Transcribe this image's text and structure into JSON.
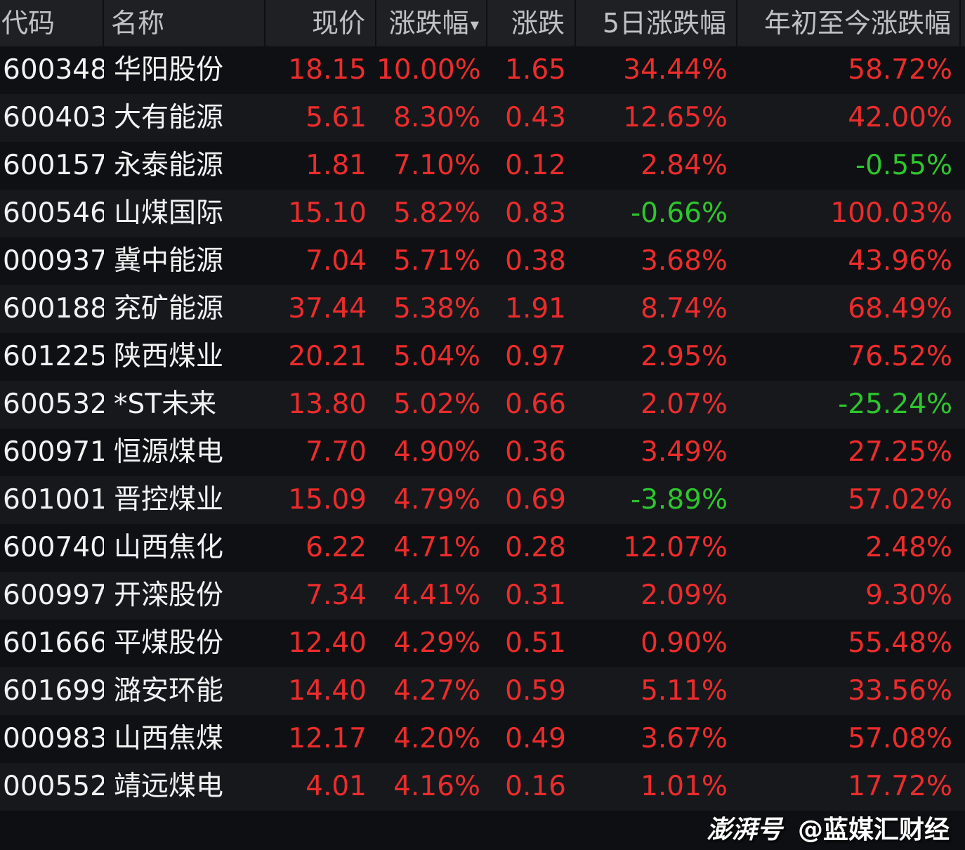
{
  "header": {
    "code": "代码",
    "name": "名称",
    "price": "现价",
    "pct": "涨跌幅",
    "sort_icon": "triangle-down",
    "change": "涨跌",
    "pct5d": "5日涨跌幅",
    "ytd": "年初至今涨跌幅"
  },
  "colors": {
    "up": "#ec2c2c",
    "down": "#2ec52e",
    "header_bg": "#1f2024"
  },
  "rows": [
    {
      "code": "600348",
      "name": "华阳股份",
      "price": "18.15",
      "pct": "10.00%",
      "change": "1.65",
      "pct5d": "34.44%",
      "ytd": "58.72%"
    },
    {
      "code": "600403",
      "name": "大有能源",
      "price": "5.61",
      "pct": "8.30%",
      "change": "0.43",
      "pct5d": "12.65%",
      "ytd": "42.00%"
    },
    {
      "code": "600157",
      "name": "永泰能源",
      "price": "1.81",
      "pct": "7.10%",
      "change": "0.12",
      "pct5d": "2.84%",
      "ytd": "-0.55%"
    },
    {
      "code": "600546",
      "name": "山煤国际",
      "price": "15.10",
      "pct": "5.82%",
      "change": "0.83",
      "pct5d": "-0.66%",
      "ytd": "100.03%"
    },
    {
      "code": "000937",
      "name": "冀中能源",
      "price": "7.04",
      "pct": "5.71%",
      "change": "0.38",
      "pct5d": "3.68%",
      "ytd": "43.96%"
    },
    {
      "code": "600188",
      "name": "兖矿能源",
      "price": "37.44",
      "pct": "5.38%",
      "change": "1.91",
      "pct5d": "8.74%",
      "ytd": "68.49%"
    },
    {
      "code": "601225",
      "name": "陕西煤业",
      "price": "20.21",
      "pct": "5.04%",
      "change": "0.97",
      "pct5d": "2.95%",
      "ytd": "76.52%"
    },
    {
      "code": "600532",
      "name": "*ST未来",
      "price": "13.80",
      "pct": "5.02%",
      "change": "0.66",
      "pct5d": "2.07%",
      "ytd": "-25.24%"
    },
    {
      "code": "600971",
      "name": "恒源煤电",
      "price": "7.70",
      "pct": "4.90%",
      "change": "0.36",
      "pct5d": "3.49%",
      "ytd": "27.25%"
    },
    {
      "code": "601001",
      "name": "晋控煤业",
      "price": "15.09",
      "pct": "4.79%",
      "change": "0.69",
      "pct5d": "-3.89%",
      "ytd": "57.02%"
    },
    {
      "code": "600740",
      "name": "山西焦化",
      "price": "6.22",
      "pct": "4.71%",
      "change": "0.28",
      "pct5d": "12.07%",
      "ytd": "2.48%"
    },
    {
      "code": "600997",
      "name": "开滦股份",
      "price": "7.34",
      "pct": "4.41%",
      "change": "0.31",
      "pct5d": "2.09%",
      "ytd": "9.30%"
    },
    {
      "code": "601666",
      "name": "平煤股份",
      "price": "12.40",
      "pct": "4.29%",
      "change": "0.51",
      "pct5d": "0.90%",
      "ytd": "55.48%"
    },
    {
      "code": "601699",
      "name": "潞安环能",
      "price": "14.40",
      "pct": "4.27%",
      "change": "0.59",
      "pct5d": "5.11%",
      "ytd": "33.56%"
    },
    {
      "code": "000983",
      "name": "山西焦煤",
      "price": "12.17",
      "pct": "4.20%",
      "change": "0.49",
      "pct5d": "3.67%",
      "ytd": "57.08%"
    },
    {
      "code": "000552",
      "name": "靖远煤电",
      "price": "4.01",
      "pct": "4.16%",
      "change": "0.16",
      "pct5d": "1.01%",
      "ytd": "17.72%"
    }
  ],
  "watermark": {
    "logo": "澎湃号",
    "author": "@蓝媒汇财经"
  }
}
